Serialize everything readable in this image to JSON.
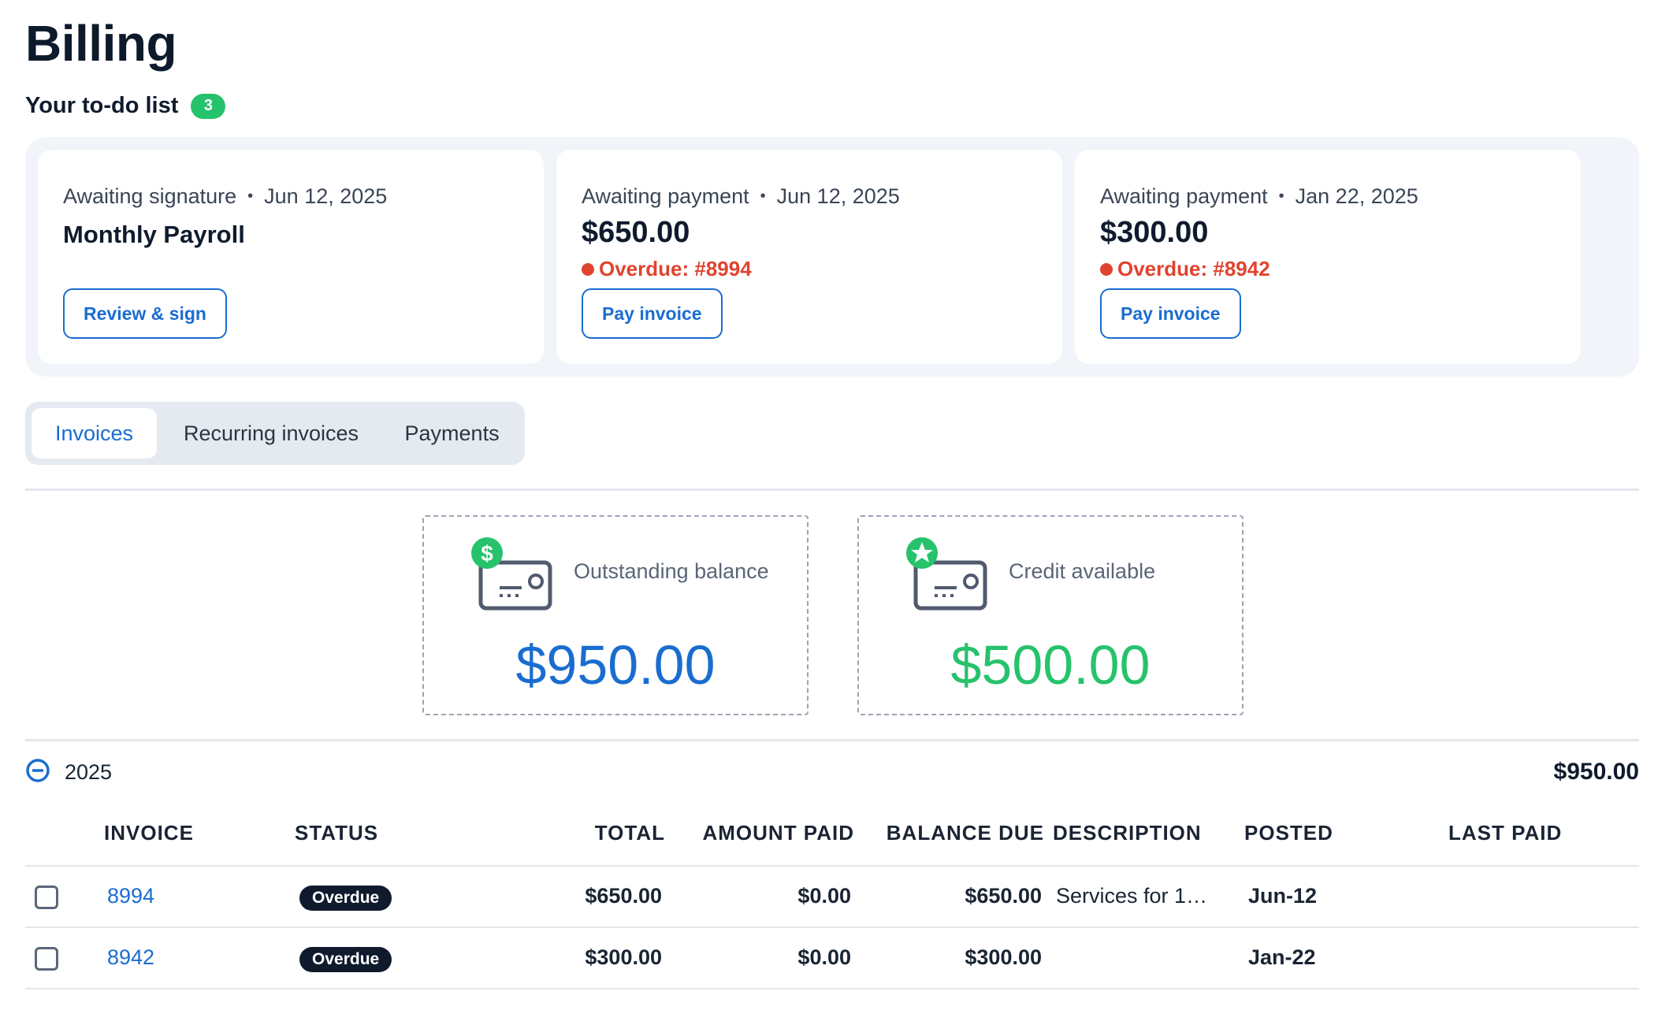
{
  "page": {
    "title": "Billing"
  },
  "todo": {
    "heading": "Your to-do list",
    "count": "3",
    "cards": [
      {
        "status": "Awaiting signature",
        "date": "Jun 12, 2025",
        "title": "Monthly Payroll",
        "button": "Review & sign"
      },
      {
        "status": "Awaiting payment",
        "date": "Jun 12, 2025",
        "amount": "$650.00",
        "overdue": "Overdue: #8994",
        "button": "Pay invoice"
      },
      {
        "status": "Awaiting payment",
        "date": "Jan 22, 2025",
        "amount": "$300.00",
        "overdue": "Overdue: #8942",
        "button": "Pay invoice"
      }
    ]
  },
  "tabs": [
    {
      "label": "Invoices",
      "active": true
    },
    {
      "label": "Recurring invoices",
      "active": false
    },
    {
      "label": "Payments",
      "active": false
    }
  ],
  "summary": {
    "outstanding": {
      "label": "Outstanding balance",
      "value": "$950.00",
      "color": "#1a6dd0",
      "icon": "dollar-invoice-icon"
    },
    "credit": {
      "label": "Credit available",
      "value": "$500.00",
      "color": "#27c26c",
      "icon": "star-invoice-icon"
    }
  },
  "group": {
    "year": "2025",
    "total": "$950.00"
  },
  "table": {
    "headers": {
      "invoice": "INVOICE",
      "status": "STATUS",
      "total": "TOTAL",
      "amount_paid": "AMOUNT PAID",
      "balance_due": "BALANCE DUE",
      "description": "DESCRIPTION",
      "posted": "POSTED",
      "last_paid": "LAST PAID"
    },
    "rows": [
      {
        "invoice": "8994",
        "status": "Overdue",
        "total": "$650.00",
        "amount_paid": "$0.00",
        "balance_due": "$650.00",
        "description": "Services for 1…",
        "posted": "Jun-12",
        "last_paid": ""
      },
      {
        "invoice": "8942",
        "status": "Overdue",
        "total": "$300.00",
        "amount_paid": "$0.00",
        "balance_due": "$300.00",
        "description": "",
        "posted": "Jan-22",
        "last_paid": ""
      }
    ]
  },
  "colors": {
    "accent": "#1a6dd0",
    "success": "#27c26c",
    "danger": "#e0432f",
    "dark": "#0f1b2d"
  }
}
